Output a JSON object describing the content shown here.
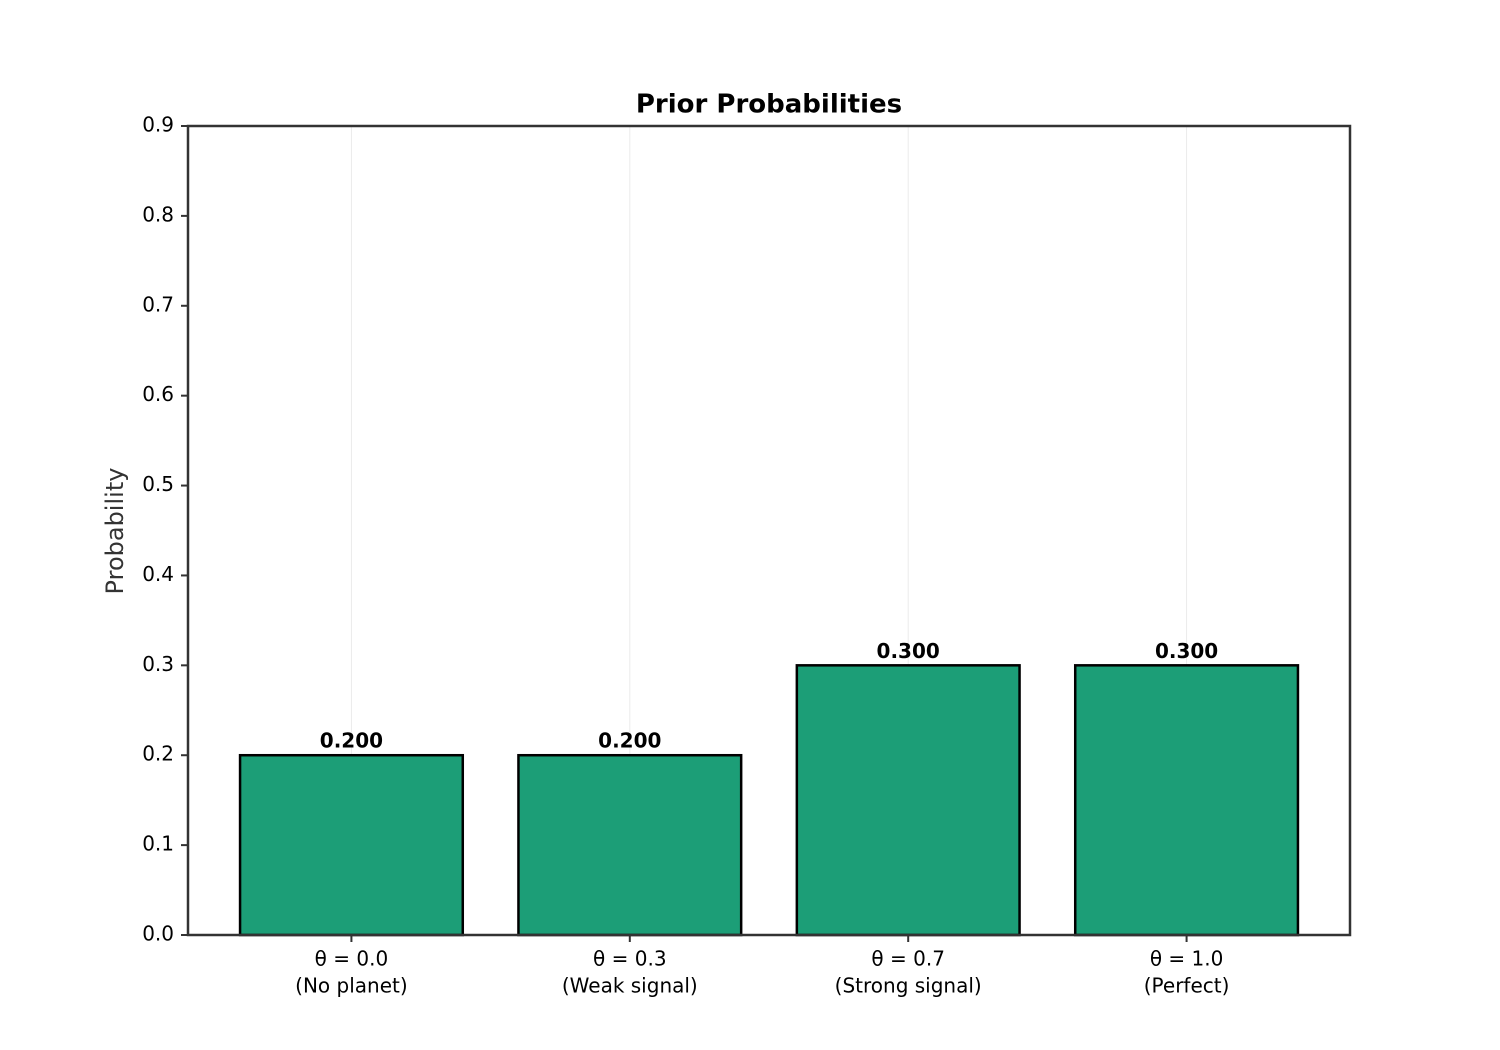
{
  "chart_data": {
    "type": "bar",
    "title": "Prior Probabilities",
    "y_label": "Probability",
    "categories": [
      [
        "θ = 0.0",
        "(No planet)"
      ],
      [
        "θ = 0.3",
        "(Weak signal)"
      ],
      [
        "θ = 0.7",
        "(Strong signal)"
      ],
      [
        "θ = 1.0",
        "(Perfect)"
      ]
    ],
    "values": [
      0.2,
      0.2,
      0.3,
      0.3
    ],
    "value_labels": [
      "0.200",
      "0.200",
      "0.300",
      "0.300"
    ],
    "color": "#1c9e77",
    "edge_color": "#000000",
    "ylim": [
      0,
      0.9
    ],
    "yticks": [
      {
        "value": 0,
        "label": "0.0"
      },
      {
        "value": 0.1,
        "label": "0.1"
      },
      {
        "value": 0.2,
        "label": "0.2"
      },
      {
        "value": 0.3,
        "label": "0.3"
      },
      {
        "value": 0.4,
        "label": "0.4"
      },
      {
        "value": 0.5,
        "label": "0.5"
      },
      {
        "value": 0.6,
        "label": "0.6"
      },
      {
        "value": 0.7,
        "label": "0.7"
      },
      {
        "value": 0.8,
        "label": "0.8"
      },
      {
        "value": 0.9,
        "label": "0.9"
      }
    ],
    "grid": "x"
  }
}
